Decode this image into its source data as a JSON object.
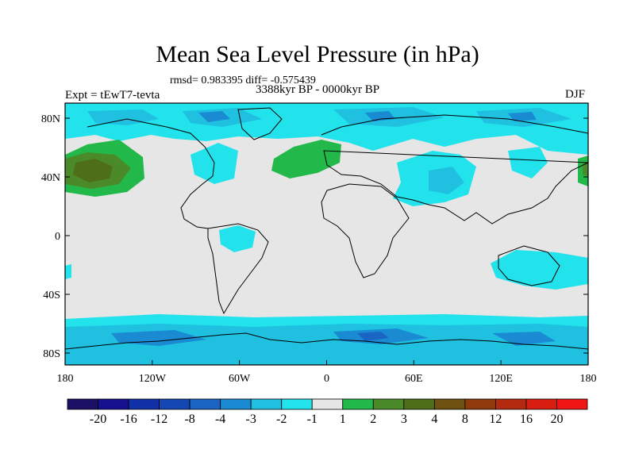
{
  "title": "Mean Sea Level Pressure (in hPa)",
  "stats": "rmsd= 0.983395 diff= -0.575439",
  "experiment": "Expt = tEwT7-tevta",
  "period": "3388kyr BP - 0000kyr BP",
  "season": "DJF",
  "lat_labels": [
    "80N",
    "40N",
    "0",
    "40S",
    "80S"
  ],
  "lon_labels": [
    "180",
    "120W",
    "60W",
    "0",
    "60E",
    "120E",
    "180"
  ],
  "colorbar": {
    "labels": [
      "-20",
      "-16",
      "-12",
      "-8",
      "-4",
      "-3",
      "-2",
      "-1",
      "1",
      "2",
      "3",
      "4",
      "8",
      "12",
      "16",
      "20"
    ],
    "colors": [
      "#1c0f66",
      "#16118e",
      "#1231a8",
      "#1446b4",
      "#1a64c4",
      "#1a8ad2",
      "#1fc0e0",
      "#22e2ec",
      "#e6e6e6",
      "#22b84a",
      "#4a8a28",
      "#4e6e18",
      "#6e5010",
      "#8e3a0a",
      "#b42a10",
      "#d81e10",
      "#f01616"
    ]
  },
  "colors": {
    "land_ocean_neutral": "#e6e6e6",
    "light_cyan": "#22e2ec",
    "mid_cyan": "#1fc0e0",
    "mid_blue": "#1a8ad2",
    "green": "#22b84a",
    "dark_green": "#4a8a28",
    "olive": "#4e6e18"
  }
}
